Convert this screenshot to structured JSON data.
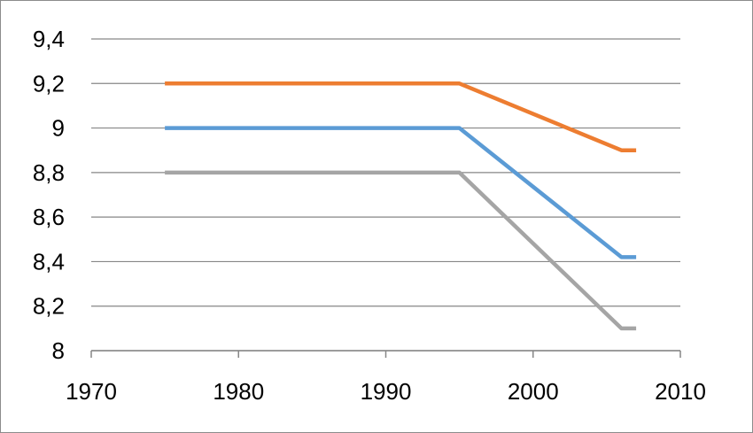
{
  "chart_data": {
    "type": "line",
    "title": "",
    "xlabel": "",
    "ylabel": "",
    "xlim": [
      1970,
      2010
    ],
    "ylim": [
      8,
      9.4
    ],
    "x_ticks": [
      "1970",
      "1980",
      "1990",
      "2000",
      "2010"
    ],
    "y_ticks": [
      "8",
      "8,2",
      "8,4",
      "8,6",
      "8,8",
      "9",
      "9,2",
      "9,4"
    ],
    "grid": true,
    "legend": "none",
    "series": [
      {
        "color": "#ED7D31",
        "points": [
          [
            1975,
            9.2
          ],
          [
            1995,
            9.2
          ],
          [
            2006,
            8.9
          ],
          [
            2007,
            8.9
          ]
        ]
      },
      {
        "color": "#5B9BD5",
        "points": [
          [
            1975,
            9.0
          ],
          [
            1995,
            9.0
          ],
          [
            2006,
            8.42
          ],
          [
            2007,
            8.42
          ]
        ]
      },
      {
        "color": "#A5A5A5",
        "points": [
          [
            1975,
            8.8
          ],
          [
            1995,
            8.8
          ],
          [
            2006,
            8.1
          ],
          [
            2007,
            8.1
          ]
        ]
      }
    ]
  }
}
